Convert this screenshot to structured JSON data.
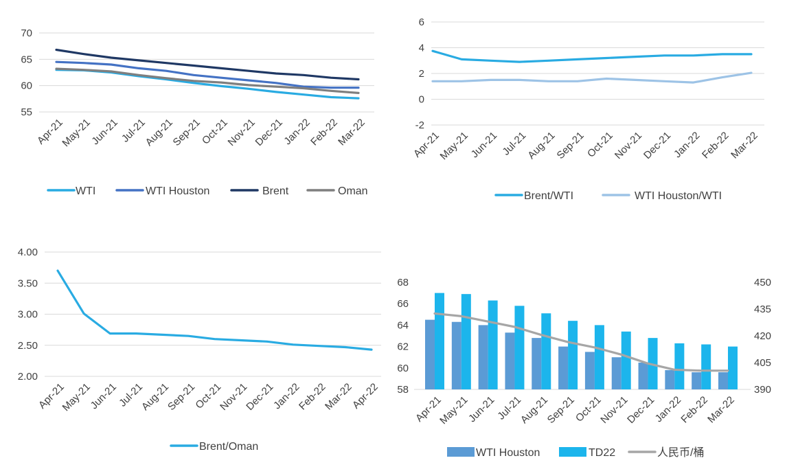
{
  "colors": {
    "wti": "#29ABE2",
    "wti_houston": "#4472C4",
    "brent": "#1F3864",
    "oman": "#7F7F7F",
    "brent_wti": "#29ABE2",
    "wti_houston_wti": "#9DC3E6",
    "brent_oman": "#29ABE2",
    "bar_wti_houston": "#5B9BD5",
    "bar_td22": "#1CB5EC",
    "rmb_line": "#A6A6A6",
    "axis": "#D9D9D9",
    "text": "#404040"
  },
  "chart_data": [
    {
      "type": "line",
      "categories": [
        "Apr-21",
        "May-21",
        "Jun-21",
        "Jul-21",
        "Aug-21",
        "Sep-21",
        "Oct-21",
        "Nov-21",
        "Dec-21",
        "Jan-22",
        "Feb-22",
        "Mar-22"
      ],
      "ylim": [
        55,
        70
      ],
      "yticks": [
        "70",
        "65",
        "60",
        "55"
      ],
      "ytick_values": [
        70,
        65,
        60,
        55
      ],
      "legend_position": "bottom",
      "series": [
        {
          "name": "WTI",
          "color_key": "wti",
          "values": [
            63.0,
            62.9,
            62.5,
            61.8,
            61.2,
            60.5,
            59.9,
            59.4,
            58.8,
            58.3,
            57.8,
            57.6
          ]
        },
        {
          "name": "WTI Houston",
          "color_key": "wti_houston",
          "values": [
            64.5,
            64.3,
            64.0,
            63.3,
            62.8,
            62.0,
            61.5,
            61.0,
            60.5,
            59.8,
            59.6,
            59.6
          ]
        },
        {
          "name": "Brent",
          "color_key": "brent",
          "values": [
            66.8,
            66.0,
            65.3,
            64.8,
            64.3,
            63.8,
            63.3,
            62.8,
            62.3,
            62.0,
            61.5,
            61.2
          ]
        },
        {
          "name": "Oman",
          "color_key": "oman",
          "values": [
            63.2,
            63.0,
            62.7,
            62.0,
            61.4,
            60.9,
            60.6,
            60.1,
            59.8,
            59.5,
            59.0,
            58.6
          ]
        }
      ]
    },
    {
      "type": "line",
      "categories": [
        "Apr-21",
        "May-21",
        "Jun-21",
        "Jul-21",
        "Aug-21",
        "Sep-21",
        "Oct-21",
        "Nov-21",
        "Dec-21",
        "Jan-22",
        "Feb-22",
        "Mar-22"
      ],
      "ylim": [
        -2,
        6
      ],
      "yticks": [
        "6",
        "4",
        "2",
        "0",
        "-2"
      ],
      "ytick_values": [
        6,
        4,
        2,
        0,
        -2
      ],
      "legend_position": "bottom",
      "series": [
        {
          "name": "Brent/WTI",
          "color_key": "brent_wti",
          "values": [
            3.75,
            3.1,
            3.0,
            2.9,
            3.0,
            3.1,
            3.2,
            3.3,
            3.4,
            3.4,
            3.5,
            3.5
          ]
        },
        {
          "name": "WTI Houston/WTI",
          "color_key": "wti_houston_wti",
          "values": [
            1.4,
            1.4,
            1.5,
            1.5,
            1.4,
            1.4,
            1.6,
            1.5,
            1.4,
            1.3,
            1.7,
            2.05
          ]
        }
      ]
    },
    {
      "type": "line",
      "categories": [
        "Apr-21",
        "May-21",
        "Jun-21",
        "Jul-21",
        "Aug-21",
        "Sep-21",
        "Oct-21",
        "Nov-21",
        "Dec-21",
        "Jan-22",
        "Feb-22",
        "Mar-22",
        "Apr-22"
      ],
      "ylim": [
        2.0,
        4.0
      ],
      "yticks": [
        "4.00",
        "3.50",
        "3.00",
        "2.50",
        "2.00"
      ],
      "ytick_values": [
        4.0,
        3.5,
        3.0,
        2.5,
        2.0
      ],
      "legend_position": "bottom",
      "series": [
        {
          "name": "Brent/Oman",
          "color_key": "brent_oman",
          "values": [
            3.7,
            3.01,
            2.69,
            2.69,
            2.67,
            2.65,
            2.6,
            2.58,
            2.56,
            2.51,
            2.49,
            2.47,
            2.43
          ]
        }
      ]
    },
    {
      "type": "bar",
      "categories": [
        "Apr-21",
        "May-21",
        "Jun-21",
        "Jul-21",
        "Aug-21",
        "Sep-21",
        "Oct-21",
        "Nov-21",
        "Dec-21",
        "Jan-22",
        "Feb-22",
        "Mar-22"
      ],
      "ylim": [
        58,
        68
      ],
      "yticks": [
        "68",
        "66",
        "64",
        "62",
        "60",
        "58"
      ],
      "ytick_values": [
        68,
        66,
        64,
        62,
        60,
        58
      ],
      "y2lim": [
        390,
        450
      ],
      "y2ticks": [
        "450",
        "435",
        "420",
        "405",
        "390"
      ],
      "y2tick_values": [
        450,
        435,
        420,
        405,
        390
      ],
      "legend_position": "bottom",
      "series": [
        {
          "name": "WTI Houston",
          "kind": "bar",
          "color_key": "bar_wti_houston",
          "values": [
            64.5,
            64.3,
            64.0,
            63.3,
            62.8,
            62.0,
            61.5,
            61.0,
            60.5,
            59.8,
            59.6,
            59.6
          ]
        },
        {
          "name": "TD22",
          "kind": "bar",
          "color_key": "bar_td22",
          "values": [
            67.0,
            66.9,
            66.3,
            65.8,
            65.1,
            64.4,
            64.0,
            63.4,
            62.8,
            62.3,
            62.2,
            62.0
          ]
        },
        {
          "name": "人民币/桶",
          "kind": "line",
          "axis": "right",
          "color_key": "rmb_line",
          "values": [
            432.5,
            431.0,
            428.0,
            425.0,
            420.5,
            416.5,
            413.5,
            409.5,
            404.5,
            401.0,
            400.5,
            400.5
          ]
        }
      ]
    }
  ]
}
